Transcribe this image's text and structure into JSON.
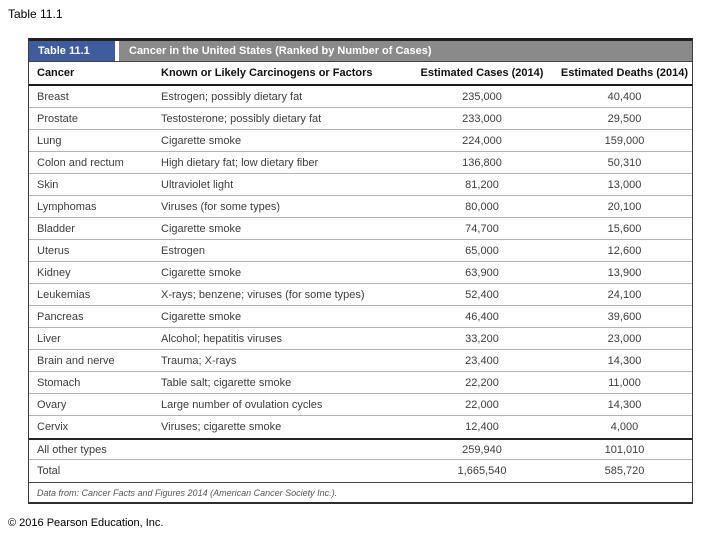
{
  "page": {
    "caption": "Table 11.1",
    "copyright": "© 2016 Pearson Education, Inc."
  },
  "colors": {
    "label_bg": "#3f5c9e",
    "title_bg": "#8a8a8a",
    "header_text": "#ffffff",
    "border_dark": "#202020"
  },
  "table": {
    "label": "Table 11.1",
    "title": "Cancer in the United States (Ranked by Number of Cases)",
    "columns": [
      "Cancer",
      "Known or Likely Carcinogens or Factors",
      "Estimated Cases (2014)",
      "Estimated Deaths (2014)"
    ],
    "rows": [
      {
        "cancer": "Breast",
        "factors": "Estrogen; possibly dietary fat",
        "cases": "235,000",
        "deaths": "40,400"
      },
      {
        "cancer": "Prostate",
        "factors": "Testosterone; possibly dietary fat",
        "cases": "233,000",
        "deaths": "29,500"
      },
      {
        "cancer": "Lung",
        "factors": "Cigarette smoke",
        "cases": "224,000",
        "deaths": "159,000"
      },
      {
        "cancer": "Colon and rectum",
        "factors": "High dietary fat; low dietary fiber",
        "cases": "136,800",
        "deaths": "50,310"
      },
      {
        "cancer": "Skin",
        "factors": "Ultraviolet light",
        "cases": "81,200",
        "deaths": "13,000"
      },
      {
        "cancer": "Lymphomas",
        "factors": "Viruses (for some types)",
        "cases": "80,000",
        "deaths": "20,100"
      },
      {
        "cancer": "Bladder",
        "factors": "Cigarette smoke",
        "cases": "74,700",
        "deaths": "15,600"
      },
      {
        "cancer": "Uterus",
        "factors": "Estrogen",
        "cases": "65,000",
        "deaths": "12,600"
      },
      {
        "cancer": "Kidney",
        "factors": "Cigarette smoke",
        "cases": "63,900",
        "deaths": "13,900"
      },
      {
        "cancer": "Leukemias",
        "factors": "X-rays; benzene; viruses (for some types)",
        "cases": "52,400",
        "deaths": "24,100"
      },
      {
        "cancer": "Pancreas",
        "factors": "Cigarette smoke",
        "cases": "46,400",
        "deaths": "39,600"
      },
      {
        "cancer": "Liver",
        "factors": "Alcohol; hepatitis viruses",
        "cases": "33,200",
        "deaths": "23,000"
      },
      {
        "cancer": "Brain and nerve",
        "factors": "Trauma; X-rays",
        "cases": "23,400",
        "deaths": "14,300"
      },
      {
        "cancer": "Stomach",
        "factors": "Table salt; cigarette smoke",
        "cases": "22,200",
        "deaths": "11,000"
      },
      {
        "cancer": "Ovary",
        "factors": "Large number of ovulation cycles",
        "cases": "22,000",
        "deaths": "14,300"
      },
      {
        "cancer": "Cervix",
        "factors": "Viruses; cigarette smoke",
        "cases": "12,400",
        "deaths": "4,000"
      }
    ],
    "summary_rows": [
      {
        "cancer": "All other types",
        "factors": "",
        "cases": "259,940",
        "deaths": "101,010"
      },
      {
        "cancer": "Total",
        "factors": "",
        "cases": "1,665,540",
        "deaths": "585,720"
      }
    ],
    "footnote": "Data from: Cancer Facts and Figures 2014 (American Cancer Society Inc.)."
  }
}
